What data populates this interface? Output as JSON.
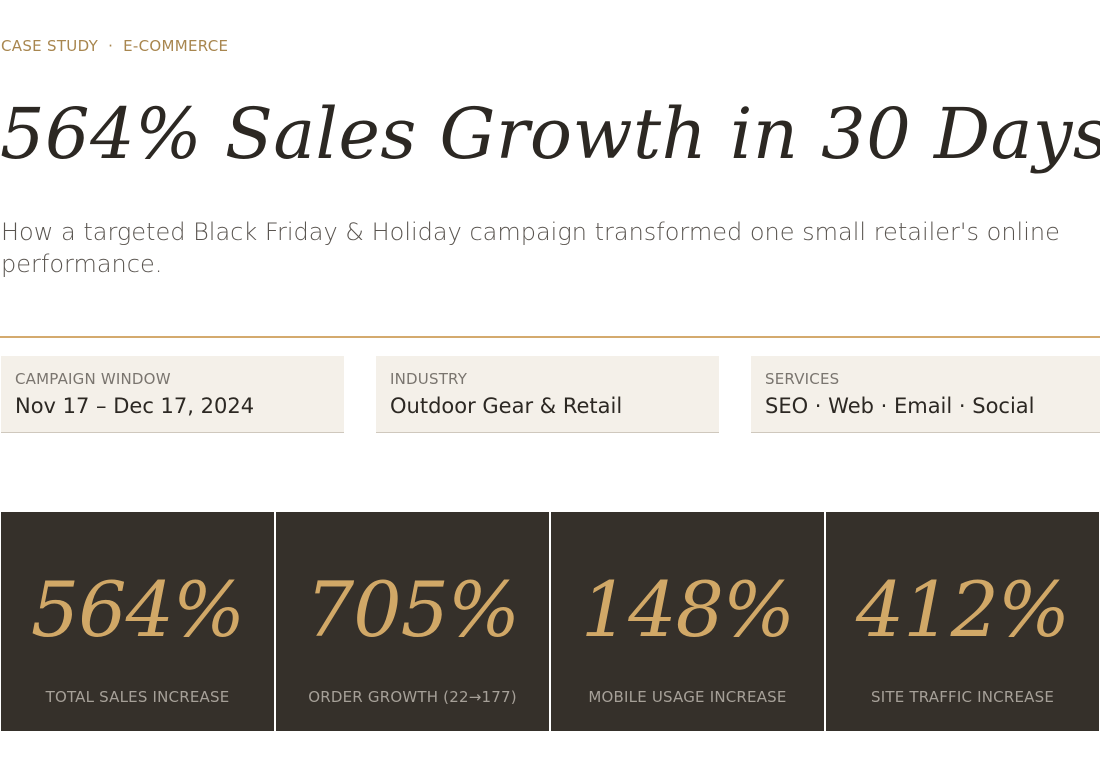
{
  "eyebrow": {
    "category": "CASE STUDY",
    "separator": "·",
    "sector": "E-COMMERCE"
  },
  "hero": {
    "title": "564% Sales Growth in 30 Days",
    "subtitle": "How a targeted Black Friday & Holiday campaign transformed one small retailer's online performance."
  },
  "meta": [
    {
      "label": "CAMPAIGN WINDOW",
      "value": "Nov 17 – Dec 17, 2024"
    },
    {
      "label": "INDUSTRY",
      "value": "Outdoor Gear & Retail"
    },
    {
      "label": "SERVICES",
      "value": "SEO · Web · Email · Social"
    }
  ],
  "stats": [
    {
      "value": "564%",
      "label": "TOTAL SALES INCREASE"
    },
    {
      "value": "705%",
      "label": "ORDER GROWTH (22→177)"
    },
    {
      "value": "148%",
      "label": "MOBILE USAGE INCREASE"
    },
    {
      "value": "412%",
      "label": "SITE TRAFFIC INCREASE"
    }
  ],
  "colors": {
    "accent": "#d1a867",
    "eyebrow": "#a8864f",
    "stat_background": "#35302a",
    "meta_background": "#f4f0e9",
    "rule": "#d4aa6e"
  }
}
